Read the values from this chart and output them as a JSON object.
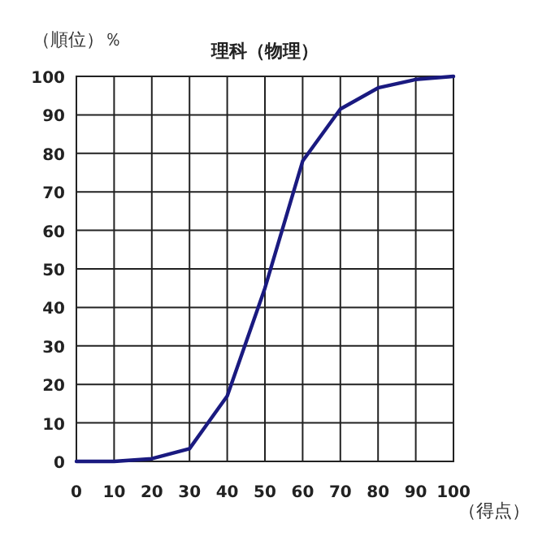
{
  "chart_data": {
    "type": "line",
    "title": "理科（物理）",
    "ylabel": "（順位）％",
    "xlabel": "（得点）",
    "x": [
      0,
      10,
      20,
      30,
      40,
      50,
      60,
      70,
      80,
      90,
      100
    ],
    "series": [
      {
        "color": "#1a1a80",
        "values": [
          0,
          0,
          0.7,
          3.3,
          17,
          45,
          78,
          91.5,
          97,
          99.2,
          100
        ]
      }
    ],
    "xlim": [
      0,
      100
    ],
    "ylim": [
      0,
      100
    ],
    "xticks": [
      0,
      10,
      20,
      30,
      40,
      50,
      60,
      70,
      80,
      90,
      100
    ],
    "yticks": [
      0,
      10,
      20,
      30,
      40,
      50,
      60,
      70,
      80,
      90,
      100
    ],
    "grid": true,
    "marker": "none",
    "line_style": "solid"
  }
}
